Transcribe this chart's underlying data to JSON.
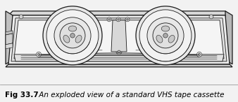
{
  "caption_bold": "Fig 33.7",
  "caption_italic": " An exploded view of a standard VHS tape cassette",
  "bg_color": "#f2f2f2",
  "line_color": "#1a1a1a",
  "fill_body": "#e8e8e8",
  "fill_white": "#f8f8f8",
  "fill_side": "#c8c8c8",
  "fill_bottom": "#d5d5d5",
  "caption_fontsize": 7.5,
  "image_bg": "#f0f0f0"
}
